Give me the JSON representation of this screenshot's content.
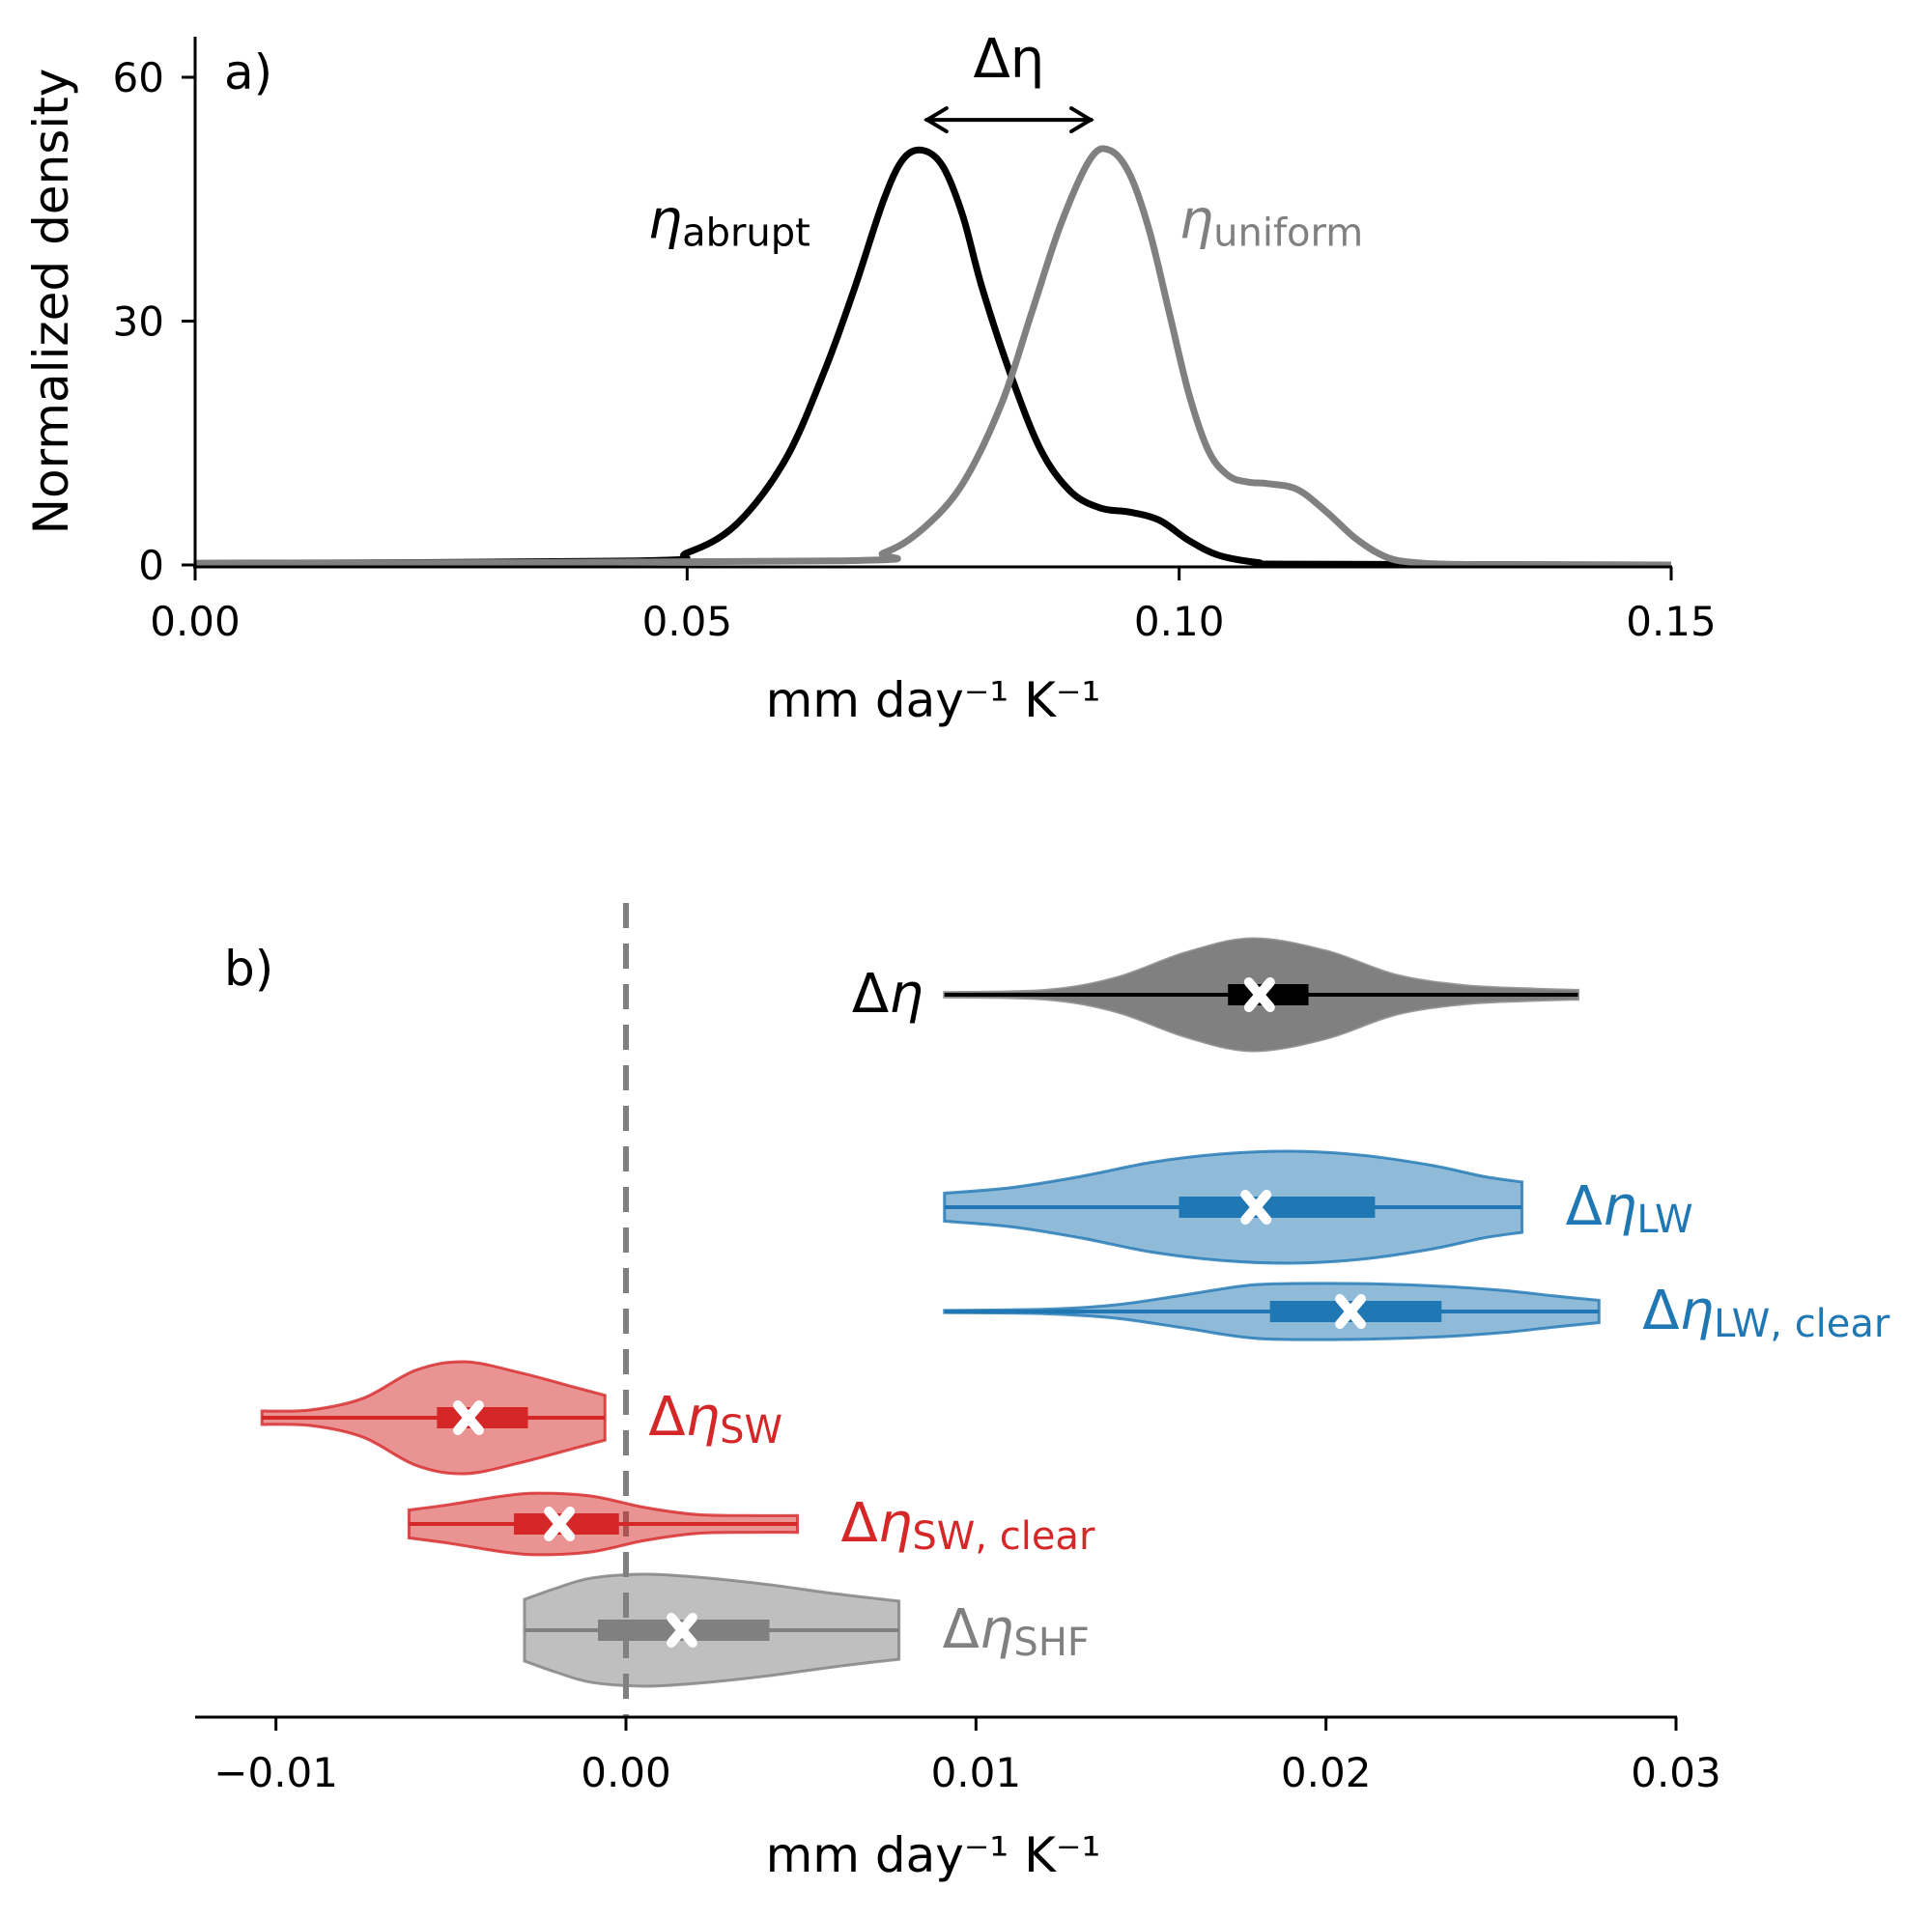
{
  "chart_data": [
    {
      "panel": "a)",
      "type": "line",
      "title": "",
      "xlabel": "mm day⁻¹ K⁻¹",
      "ylabel": "Normalized density",
      "xlim": [
        0.0,
        0.15
      ],
      "ylim": [
        0,
        65
      ],
      "xticks": [
        "0.00",
        "0.05",
        "0.10",
        "0.15"
      ],
      "xtick_values": [
        0.0,
        0.05,
        0.1,
        0.15
      ],
      "yticks": [
        "0",
        "30",
        "60"
      ],
      "ytick_values": [
        0,
        30,
        60
      ],
      "grid": false,
      "annotation": {
        "label": "Δη",
        "from_x": 0.074,
        "to_x": 0.091,
        "y": 55
      },
      "series": [
        {
          "name": "η",
          "subscript": "abrupt",
          "color": "#000000",
          "label_pos": [
            0.046,
            40
          ],
          "x": [
            0.0,
            0.045,
            0.05,
            0.055,
            0.06,
            0.064,
            0.067,
            0.07,
            0.072,
            0.074,
            0.076,
            0.078,
            0.08,
            0.083,
            0.086,
            0.089,
            0.092,
            0.095,
            0.098,
            0.101,
            0.104,
            0.108,
            0.112,
            0.15
          ],
          "y": [
            0.2,
            0.5,
            1.5,
            5,
            13,
            24,
            34,
            45,
            50,
            51,
            49,
            43,
            34,
            23,
            14,
            9,
            7,
            6.5,
            5.5,
            3,
            1.2,
            0.3,
            0.1,
            0.0
          ]
        },
        {
          "name": "η",
          "subscript": "uniform",
          "color": "#808080",
          "label_pos": [
            0.1,
            40
          ],
          "x": [
            0.0,
            0.065,
            0.07,
            0.074,
            0.078,
            0.082,
            0.085,
            0.088,
            0.091,
            0.093,
            0.095,
            0.097,
            0.099,
            0.101,
            0.103,
            0.105,
            0.107,
            0.109,
            0.112,
            0.115,
            0.118,
            0.121,
            0.124,
            0.13,
            0.15
          ],
          "y": [
            0.2,
            0.5,
            1.5,
            4.5,
            10,
            20,
            31,
            42,
            50,
            51,
            48,
            41,
            31,
            21,
            14,
            11,
            10.2,
            10,
            9.3,
            6.5,
            3.2,
            1,
            0.3,
            0.05,
            0.0
          ]
        }
      ]
    },
    {
      "panel": "b)",
      "type": "violin",
      "xlabel": "mm day⁻¹ K⁻¹",
      "ylabel": "",
      "xlim": [
        -0.0123,
        0.03
      ],
      "xticks": [
        "−0.01",
        "0.00",
        "0.01",
        "0.02",
        "0.03"
      ],
      "xtick_values": [
        -0.01,
        0.0,
        0.01,
        0.02,
        0.03
      ],
      "grid": false,
      "reference_line": {
        "x": 0.0,
        "style": "dashed",
        "color": "#808080"
      },
      "violins": [
        {
          "name": "Δη",
          "subscript": "",
          "label_side": "left",
          "color": "#000000",
          "fill": "#808080",
          "fill_opacity": 1.0,
          "min": 0.0091,
          "max": 0.0272,
          "q1": 0.0172,
          "q3": 0.0195,
          "mean": 0.0181,
          "peak": 0.0179,
          "max_halfwidth": 1.0,
          "profile_x": [
            0.0091,
            0.012,
            0.014,
            0.016,
            0.0179,
            0.02,
            0.022,
            0.024,
            0.026,
            0.0272
          ],
          "profile_w": [
            0.04,
            0.08,
            0.3,
            0.75,
            1.0,
            0.78,
            0.35,
            0.16,
            0.1,
            0.08
          ]
        },
        {
          "name": "Δη",
          "subscript": "LW",
          "label_side": "right",
          "color": "#1f77b4",
          "fill": "#1f77b4",
          "fill_opacity": 0.5,
          "min": 0.0091,
          "max": 0.0256,
          "q1": 0.0158,
          "q3": 0.0214,
          "mean": 0.018,
          "peak": 0.019,
          "max_halfwidth": 1.0,
          "profile_x": [
            0.0091,
            0.011,
            0.013,
            0.015,
            0.017,
            0.019,
            0.021,
            0.023,
            0.0245,
            0.0256
          ],
          "profile_w": [
            0.25,
            0.35,
            0.55,
            0.8,
            0.95,
            1.0,
            0.93,
            0.75,
            0.55,
            0.45
          ]
        },
        {
          "name": "Δη",
          "subscript": "LW, clear",
          "label_side": "right",
          "color": "#1f77b4",
          "fill": "#1f77b4",
          "fill_opacity": 0.5,
          "min": 0.0091,
          "max": 0.0278,
          "q1": 0.0184,
          "q3": 0.0233,
          "mean": 0.0207,
          "peak": 0.0205,
          "max_halfwidth": 0.5,
          "profile_x": [
            0.0091,
            0.012,
            0.014,
            0.016,
            0.018,
            0.0205,
            0.023,
            0.025,
            0.0265,
            0.0278
          ],
          "profile_w": [
            0.02,
            0.04,
            0.12,
            0.3,
            0.48,
            0.5,
            0.46,
            0.38,
            0.28,
            0.2
          ]
        },
        {
          "name": "Δη",
          "subscript": "SW",
          "label_side": "right",
          "color": "#d62728",
          "fill": "#d62728",
          "fill_opacity": 0.5,
          "min": -0.0104,
          "max": -0.0006,
          "q1": -0.0054,
          "q3": -0.0028,
          "mean": -0.0045,
          "peak": -0.0046,
          "max_halfwidth": 1.0,
          "profile_x": [
            -0.0104,
            -0.009,
            -0.0075,
            -0.006,
            -0.0046,
            -0.003,
            -0.0015,
            -0.0006
          ],
          "profile_w": [
            0.12,
            0.14,
            0.35,
            0.85,
            1.0,
            0.8,
            0.55,
            0.4
          ]
        },
        {
          "name": "Δη",
          "subscript": "SW, clear",
          "label_side": "right",
          "color": "#d62728",
          "fill": "#d62728",
          "fill_opacity": 0.5,
          "min": -0.0062,
          "max": 0.0049,
          "q1": -0.0032,
          "q3": -0.0002,
          "mean": -0.0019,
          "peak": -0.0025,
          "max_halfwidth": 0.55,
          "profile_x": [
            -0.0062,
            -0.005,
            -0.0035,
            -0.0025,
            -0.001,
            0.0005,
            0.002,
            0.0035,
            0.0049
          ],
          "profile_w": [
            0.25,
            0.35,
            0.5,
            0.55,
            0.5,
            0.3,
            0.17,
            0.15,
            0.15
          ]
        },
        {
          "name": "Δη",
          "subscript": "SHF",
          "label_side": "right",
          "color": "#808080",
          "fill": "#808080",
          "fill_opacity": 0.5,
          "min": -0.0029,
          "max": 0.0078,
          "q1": -0.0008,
          "q3": 0.0041,
          "mean": 0.0016,
          "peak": 0.0005,
          "max_halfwidth": 1.0,
          "profile_x": [
            -0.0029,
            -0.002,
            -0.001,
            0.0005,
            0.002,
            0.004,
            0.006,
            0.0078
          ],
          "profile_w": [
            0.55,
            0.75,
            0.93,
            1.0,
            0.95,
            0.82,
            0.65,
            0.52
          ]
        }
      ]
    }
  ]
}
